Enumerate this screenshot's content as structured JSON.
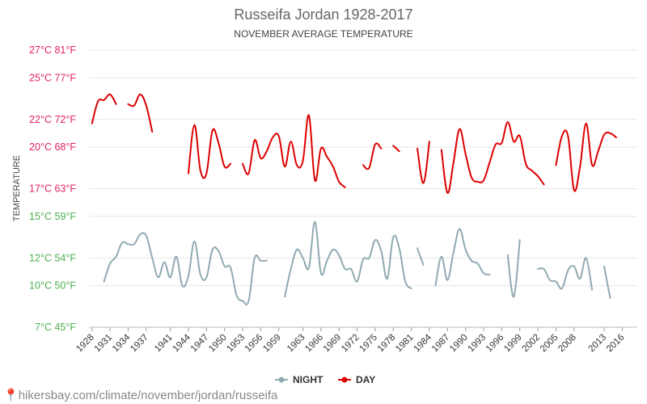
{
  "chart_data": {
    "type": "line",
    "title": "Russeifa Jordan 1928-2017",
    "subtitle": "NOVEMBER AVERAGE TEMPERATURE",
    "ylabel": "TEMPERATURE",
    "xlabel": "",
    "ylim": [
      7,
      27
    ],
    "y_ticks": [
      {
        "value": 27,
        "label": "27°C 81°F",
        "color": "#e0245e"
      },
      {
        "value": 25,
        "label": "25°C 77°F",
        "color": "#e0245e"
      },
      {
        "value": 22,
        "label": "22°C 72°F",
        "color": "#e0245e"
      },
      {
        "value": 20,
        "label": "20°C 68°F",
        "color": "#e0245e"
      },
      {
        "value": 17,
        "label": "17°C 63°F",
        "color": "#e0245e"
      },
      {
        "value": 15,
        "label": "15°C 59°F",
        "color": "#4caf50"
      },
      {
        "value": 12,
        "label": "12°C 54°F",
        "color": "#4caf50"
      },
      {
        "value": 10,
        "label": "10°C 50°F",
        "color": "#4caf50"
      },
      {
        "value": 7,
        "label": "7°C 45°F",
        "color": "#4caf50"
      }
    ],
    "x_range": [
      1927.5,
      2018.5
    ],
    "x_ticks": [
      1928,
      1931,
      1934,
      1937,
      1941,
      1944,
      1947,
      1950,
      1953,
      1956,
      1959,
      1963,
      1966,
      1969,
      1972,
      1975,
      1978,
      1981,
      1984,
      1987,
      1990,
      1993,
      1996,
      1999,
      2002,
      2005,
      2008,
      2013,
      2016
    ],
    "legend": {
      "placement": "bottom-center"
    },
    "series": [
      {
        "name": "NIGHT",
        "color": "#90aab2",
        "segments": [
          [
            [
              1930,
              10.3
            ],
            [
              1931,
              11.6
            ],
            [
              1932,
              12.1
            ],
            [
              1933,
              13.1
            ],
            [
              1934,
              13.0
            ],
            [
              1935,
              13.0
            ],
            [
              1936,
              13.7
            ],
            [
              1937,
              13.6
            ],
            [
              1938,
              12.0
            ],
            [
              1939,
              10.6
            ],
            [
              1940,
              11.7
            ],
            [
              1941,
              10.6
            ],
            [
              1942,
              12.1
            ],
            [
              1943,
              10.0
            ],
            [
              1944,
              10.7
            ],
            [
              1945,
              13.2
            ],
            [
              1946,
              10.8
            ],
            [
              1947,
              10.6
            ],
            [
              1948,
              12.6
            ],
            [
              1949,
              12.5
            ],
            [
              1950,
              11.4
            ],
            [
              1951,
              11.3
            ],
            [
              1952,
              9.3
            ],
            [
              1953,
              8.9
            ],
            [
              1954,
              8.9
            ],
            [
              1955,
              12.0
            ],
            [
              1956,
              11.8
            ],
            [
              1957,
              11.8
            ]
          ],
          [
            [
              1960,
              9.2
            ],
            [
              1961,
              11.2
            ],
            [
              1962,
              12.6
            ],
            [
              1963,
              12.0
            ],
            [
              1964,
              11.3
            ],
            [
              1965,
              14.6
            ],
            [
              1966,
              10.9
            ],
            [
              1967,
              11.8
            ],
            [
              1968,
              12.6
            ],
            [
              1969,
              12.2
            ],
            [
              1970,
              11.2
            ],
            [
              1971,
              11.2
            ],
            [
              1972,
              10.3
            ],
            [
              1973,
              11.9
            ],
            [
              1974,
              12.0
            ],
            [
              1975,
              13.3
            ],
            [
              1976,
              12.5
            ],
            [
              1977,
              10.5
            ],
            [
              1978,
              13.5
            ],
            [
              1979,
              12.7
            ],
            [
              1980,
              10.3
            ],
            [
              1981,
              9.8
            ]
          ],
          [
            [
              1982,
              12.7
            ],
            [
              1983,
              11.5
            ]
          ],
          [
            [
              1985,
              10.0
            ],
            [
              1986,
              12.1
            ],
            [
              1987,
              10.4
            ],
            [
              1988,
              12.4
            ],
            [
              1989,
              14.1
            ],
            [
              1990,
              12.6
            ],
            [
              1991,
              11.8
            ],
            [
              1992,
              11.6
            ],
            [
              1993,
              10.9
            ],
            [
              1994,
              10.8
            ]
          ],
          [
            [
              1997,
              12.2
            ],
            [
              1998,
              9.2
            ],
            [
              1999,
              13.3
            ]
          ],
          [
            [
              2002,
              11.2
            ],
            [
              2003,
              11.2
            ],
            [
              2004,
              10.4
            ],
            [
              2005,
              10.3
            ],
            [
              2006,
              9.8
            ],
            [
              2007,
              11.1
            ],
            [
              2008,
              11.4
            ],
            [
              2009,
              10.5
            ],
            [
              2010,
              12.0
            ],
            [
              2011,
              9.7
            ]
          ],
          [
            [
              2013,
              11.4
            ],
            [
              2014,
              9.1
            ]
          ]
        ]
      },
      {
        "name": "DAY",
        "color": "#dd0000",
        "segments": [
          [
            [
              1928,
              21.7
            ],
            [
              1929,
              23.3
            ],
            [
              1930,
              23.4
            ],
            [
              1931,
              23.8
            ],
            [
              1932,
              23.1
            ]
          ],
          [
            [
              1934,
              23.1
            ],
            [
              1935,
              23.0
            ],
            [
              1936,
              23.8
            ],
            [
              1937,
              23.0
            ],
            [
              1938,
              21.1
            ]
          ],
          [
            [
              1944,
              18.1
            ],
            [
              1945,
              21.6
            ],
            [
              1946,
              18.3
            ],
            [
              1947,
              18.1
            ],
            [
              1948,
              21.2
            ],
            [
              1949,
              20.3
            ],
            [
              1950,
              18.6
            ],
            [
              1951,
              18.8
            ]
          ],
          [
            [
              1953,
              18.8
            ],
            [
              1954,
              18.1
            ],
            [
              1955,
              20.5
            ],
            [
              1956,
              19.2
            ],
            [
              1957,
              19.7
            ],
            [
              1958,
              20.7
            ],
            [
              1959,
              20.8
            ],
            [
              1960,
              18.6
            ],
            [
              1961,
              20.4
            ],
            [
              1962,
              18.7
            ],
            [
              1963,
              19.0
            ],
            [
              1964,
              22.3
            ],
            [
              1965,
              17.6
            ],
            [
              1966,
              19.9
            ],
            [
              1967,
              19.3
            ],
            [
              1968,
              18.6
            ],
            [
              1969,
              17.5
            ],
            [
              1970,
              17.1
            ]
          ],
          [
            [
              1973,
              18.7
            ],
            [
              1974,
              18.5
            ],
            [
              1975,
              20.2
            ],
            [
              1976,
              19.9
            ]
          ],
          [
            [
              1978,
              20.1
            ],
            [
              1979,
              19.7
            ]
          ],
          [
            [
              1982,
              19.9
            ],
            [
              1983,
              17.4
            ],
            [
              1984,
              20.4
            ]
          ],
          [
            [
              1986,
              19.8
            ],
            [
              1987,
              16.7
            ],
            [
              1988,
              18.9
            ],
            [
              1989,
              21.3
            ],
            [
              1990,
              19.5
            ],
            [
              1991,
              17.8
            ],
            [
              1992,
              17.5
            ],
            [
              1993,
              17.6
            ],
            [
              1994,
              18.9
            ],
            [
              1995,
              20.2
            ],
            [
              1996,
              20.3
            ],
            [
              1997,
              21.8
            ],
            [
              1998,
              20.4
            ],
            [
              1999,
              20.8
            ],
            [
              2000,
              18.8
            ],
            [
              2001,
              18.3
            ],
            [
              2002,
              17.9
            ],
            [
              2003,
              17.3
            ]
          ],
          [
            [
              2005,
              18.7
            ],
            [
              2006,
              20.8
            ],
            [
              2007,
              20.8
            ],
            [
              2008,
              16.9
            ],
            [
              2009,
              18.6
            ],
            [
              2010,
              21.7
            ],
            [
              2011,
              18.7
            ],
            [
              2012,
              19.7
            ],
            [
              2013,
              20.9
            ],
            [
              2014,
              21.0
            ],
            [
              2015,
              20.7
            ]
          ]
        ]
      }
    ]
  },
  "footer": {
    "text": "hikersbay.com/climate/november/jordan/russeifa"
  }
}
